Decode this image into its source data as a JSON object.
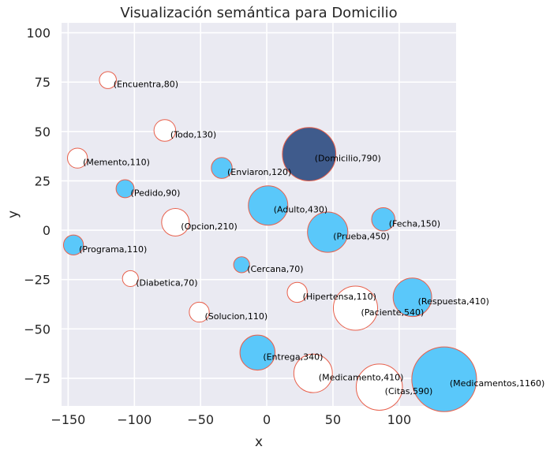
{
  "chart_data": {
    "type": "scatter",
    "title": "Visualización semántica para Domicilio",
    "xlabel": "x",
    "ylabel": "y",
    "xlim": [
      -155,
      143
    ],
    "ylim": [
      -89,
      105
    ],
    "xticks": [
      -150,
      -100,
      -50,
      0,
      50,
      100
    ],
    "yticks": [
      -75,
      -50,
      -25,
      0,
      25,
      50,
      75,
      100
    ],
    "xtick_labels": [
      "−150",
      "−100",
      "−50",
      "0",
      "50",
      "100"
    ],
    "ytick_labels": [
      "−75",
      "−50",
      "−25",
      "0",
      "25",
      "50",
      "75",
      "100"
    ],
    "grid": true,
    "background_color": "#eaeaf2",
    "grid_color": "#ffffff",
    "edge_color": "#e8604c",
    "highlight_color": "#3f5b8c",
    "filled_color": "#5ac8fa",
    "hollow_color": "#ffffff",
    "points": [
      {
        "label": "(Encuentra,80)",
        "word": "Encuentra",
        "value": 80,
        "x": -120,
        "y": 76,
        "style": "hollow"
      },
      {
        "label": "(Todo,130)",
        "word": "Todo",
        "value": 130,
        "x": -77,
        "y": 50.5,
        "style": "hollow"
      },
      {
        "label": "(Memento,110)",
        "word": "Memento",
        "value": 110,
        "x": -143,
        "y": 36.5,
        "style": "hollow"
      },
      {
        "label": "(Enviaron,120)",
        "word": "Enviaron",
        "value": 120,
        "x": -34,
        "y": 31.5,
        "style": "filled"
      },
      {
        "label": "(Domicilio,790)",
        "word": "Domicilio",
        "value": 790,
        "x": 32,
        "y": 38.5,
        "style": "highlight"
      },
      {
        "label": "(Pedido,90)",
        "word": "Pedido",
        "value": 90,
        "x": -107,
        "y": 21,
        "style": "filled"
      },
      {
        "label": "(Adulto,430)",
        "word": "Adulto",
        "value": 430,
        "x": 1,
        "y": 12.5,
        "style": "filled"
      },
      {
        "label": "(Fecha,150)",
        "word": "Fecha",
        "value": 150,
        "x": 88,
        "y": 5.5,
        "style": "filled"
      },
      {
        "label": "(Opcion,210)",
        "word": "Opcion",
        "value": 210,
        "x": -69,
        "y": 4,
        "style": "hollow"
      },
      {
        "label": "(Prueba,450)",
        "word": "Prueba",
        "value": 450,
        "x": 46,
        "y": -1,
        "style": "filled"
      },
      {
        "label": "(Programa,110)",
        "word": "Programa",
        "value": 110,
        "x": -146,
        "y": -7.5,
        "style": "filled"
      },
      {
        "label": "(Cercana,70)",
        "word": "Cercana",
        "value": 70,
        "x": -19,
        "y": -17.5,
        "style": "filled"
      },
      {
        "label": "(Diabetica,70)",
        "word": "Diabetica",
        "value": 70,
        "x": -103,
        "y": -24.5,
        "style": "hollow"
      },
      {
        "label": "(Hipertensa,110)",
        "word": "Hipertensa",
        "value": 110,
        "x": 23,
        "y": -31.5,
        "style": "hollow"
      },
      {
        "label": "(Respuesta,410)",
        "word": "Respuesta",
        "value": 410,
        "x": 110,
        "y": -34,
        "style": "filled"
      },
      {
        "label": "(Paciente,540)",
        "word": "Paciente",
        "value": 540,
        "x": 67,
        "y": -39.5,
        "style": "hollow"
      },
      {
        "label": "(Solucion,110)",
        "word": "Solucion",
        "value": 110,
        "x": -51,
        "y": -41.5,
        "style": "hollow"
      },
      {
        "label": "(Entrega,340)",
        "word": "Entrega",
        "value": 340,
        "x": -7,
        "y": -62,
        "style": "filled"
      },
      {
        "label": "(Medicamento,410)",
        "word": "Medicamento",
        "value": 410,
        "x": 35,
        "y": -72.5,
        "style": "hollow"
      },
      {
        "label": "(Citas,590)",
        "word": "Citas",
        "value": 590,
        "x": 85,
        "y": -79.5,
        "style": "hollow"
      },
      {
        "label": "(Medicamentos,1160)",
        "word": "Medicamentos",
        "value": 1160,
        "x": 134,
        "y": -75.5,
        "style": "filled"
      }
    ]
  }
}
